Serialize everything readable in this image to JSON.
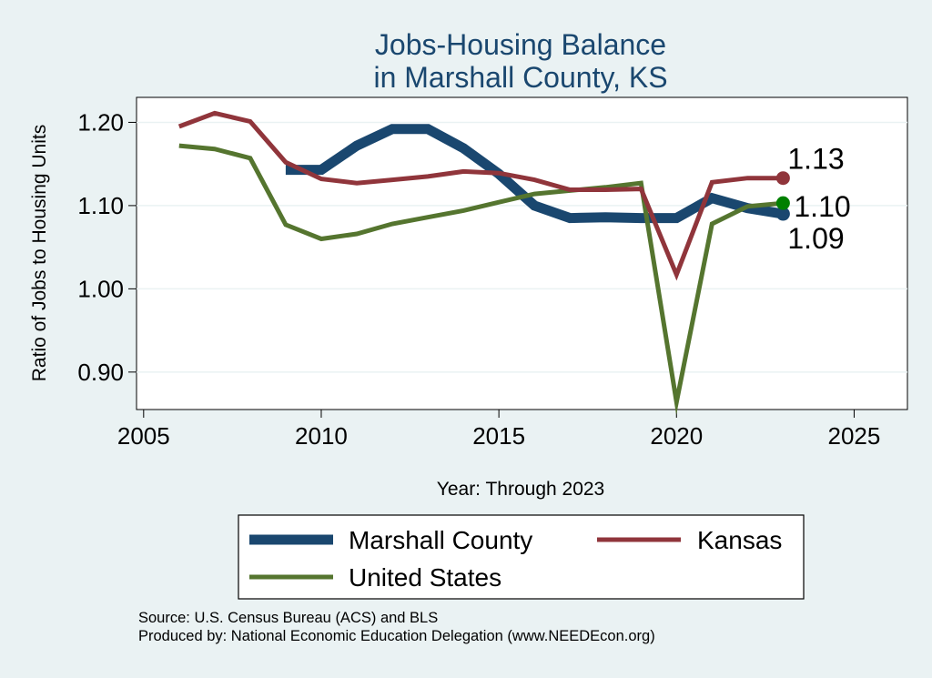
{
  "chart_data": {
    "type": "line",
    "title": [
      "Jobs-Housing Balance",
      "in Marshall County, KS"
    ],
    "xlabel": "Year: Through 2023",
    "ylabel": "Ratio of Jobs to Housing Units",
    "xlim": [
      2004.8,
      2026.5
    ],
    "ylim": [
      0.855,
      1.23
    ],
    "x_ticks": [
      2005,
      2010,
      2015,
      2020,
      2025
    ],
    "x_tick_labels": [
      "2005",
      "2010",
      "2015",
      "2020",
      "2025"
    ],
    "y_ticks": [
      0.9,
      1.0,
      1.1,
      1.2
    ],
    "y_tick_labels": [
      "0.90",
      "1.00",
      "1.10",
      "1.20"
    ],
    "grid": true,
    "legend_position": "bottom",
    "series": [
      {
        "name": "Marshall County",
        "color": "#1a476f",
        "x": [
          2009,
          2010,
          2011,
          2012,
          2013,
          2014,
          2015,
          2016,
          2017,
          2018,
          2019,
          2020,
          2021,
          2022,
          2023
        ],
        "values": [
          1.143,
          1.143,
          1.172,
          1.192,
          1.192,
          1.169,
          1.138,
          1.1,
          1.085,
          1.086,
          1.085,
          1.085,
          1.109,
          1.097,
          1.09
        ],
        "end_label": "1.09"
      },
      {
        "name": "Kansas",
        "color": "#90353b",
        "x": [
          2006,
          2007,
          2008,
          2009,
          2010,
          2011,
          2012,
          2013,
          2014,
          2015,
          2016,
          2017,
          2018,
          2019,
          2020,
          2021,
          2022,
          2023
        ],
        "values": [
          1.195,
          1.211,
          1.201,
          1.152,
          1.132,
          1.127,
          1.131,
          1.135,
          1.141,
          1.139,
          1.131,
          1.119,
          1.119,
          1.12,
          1.017,
          1.128,
          1.133,
          1.133
        ],
        "end_label": "1.13"
      },
      {
        "name": "United States",
        "color": "#55752f",
        "x": [
          2006,
          2007,
          2008,
          2009,
          2010,
          2011,
          2012,
          2013,
          2014,
          2015,
          2016,
          2017,
          2018,
          2019,
          2020,
          2021,
          2022,
          2023
        ],
        "values": [
          1.172,
          1.168,
          1.157,
          1.077,
          1.06,
          1.066,
          1.078,
          1.086,
          1.094,
          1.104,
          1.114,
          1.118,
          1.122,
          1.127,
          0.864,
          1.078,
          1.099,
          1.103
        ],
        "end_label": "1.10"
      }
    ],
    "end_marker_colors": [
      "#1a476f",
      "#90353b",
      "#008000"
    ]
  },
  "footer": {
    "source": "Source: U.S. Census Bureau (ACS) and BLS",
    "produced_by": "Produced by: National Economic Education Delegation (www.NEEDEcon.org)"
  }
}
